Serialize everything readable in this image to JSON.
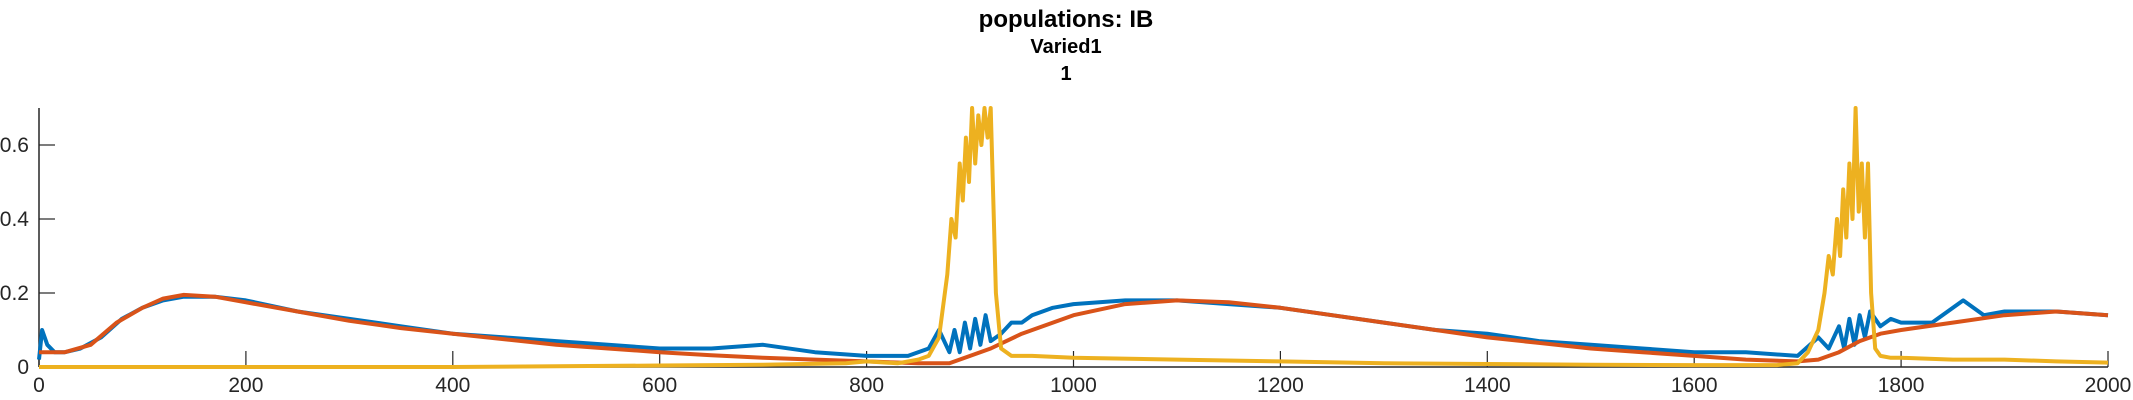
{
  "chart_data": {
    "type": "line",
    "title": "populations: IB",
    "subtitle": "Varied1",
    "subtitle2": "1",
    "xlabel": "",
    "ylabel": "",
    "xlim": [
      0,
      2000
    ],
    "ylim": [
      0,
      0.7
    ],
    "xticks": [
      0,
      200,
      400,
      600,
      800,
      1000,
      1200,
      1400,
      1600,
      1800,
      2000
    ],
    "yticks": [
      0,
      0.2,
      0.4,
      0.6
    ],
    "xtick_labels": [
      "0",
      "200",
      "400",
      "600",
      "800",
      "1000",
      "1200",
      "1400",
      "1600",
      "1800",
      "2000"
    ],
    "ytick_labels": [
      "0",
      "0.2",
      "0.4",
      "0.6"
    ],
    "grid": false,
    "legend": "none",
    "series": [
      {
        "color": "#0072BD",
        "x": [
          0,
          3,
          8,
          15,
          25,
          40,
          60,
          80,
          100,
          120,
          140,
          170,
          200,
          250,
          300,
          350,
          400,
          450,
          500,
          550,
          600,
          650,
          700,
          750,
          800,
          840,
          860,
          870,
          880,
          885,
          890,
          895,
          900,
          905,
          910,
          915,
          920,
          930,
          940,
          950,
          960,
          970,
          980,
          1000,
          1050,
          1100,
          1150,
          1200,
          1250,
          1300,
          1350,
          1400,
          1450,
          1500,
          1550,
          1600,
          1650,
          1700,
          1720,
          1730,
          1740,
          1745,
          1750,
          1755,
          1760,
          1765,
          1770,
          1780,
          1790,
          1800,
          1830,
          1860,
          1880,
          1900,
          1950,
          2000
        ],
        "y": [
          0.02,
          0.1,
          0.06,
          0.04,
          0.04,
          0.05,
          0.08,
          0.13,
          0.16,
          0.18,
          0.19,
          0.19,
          0.18,
          0.15,
          0.13,
          0.11,
          0.09,
          0.08,
          0.07,
          0.06,
          0.05,
          0.05,
          0.06,
          0.04,
          0.03,
          0.03,
          0.05,
          0.1,
          0.04,
          0.1,
          0.04,
          0.12,
          0.05,
          0.13,
          0.06,
          0.14,
          0.07,
          0.09,
          0.12,
          0.12,
          0.14,
          0.15,
          0.16,
          0.17,
          0.18,
          0.18,
          0.17,
          0.16,
          0.14,
          0.12,
          0.1,
          0.09,
          0.07,
          0.06,
          0.05,
          0.04,
          0.04,
          0.03,
          0.08,
          0.05,
          0.11,
          0.05,
          0.13,
          0.06,
          0.14,
          0.08,
          0.15,
          0.11,
          0.13,
          0.12,
          0.12,
          0.18,
          0.14,
          0.15,
          0.15,
          0.14
        ]
      },
      {
        "color": "#D95319",
        "x": [
          0,
          10,
          25,
          50,
          75,
          100,
          120,
          140,
          170,
          200,
          250,
          300,
          350,
          400,
          450,
          500,
          550,
          600,
          650,
          700,
          750,
          800,
          850,
          880,
          900,
          920,
          950,
          1000,
          1050,
          1100,
          1150,
          1200,
          1250,
          1300,
          1350,
          1400,
          1450,
          1500,
          1550,
          1600,
          1650,
          1700,
          1720,
          1740,
          1760,
          1780,
          1800,
          1850,
          1900,
          1950,
          2000
        ],
        "y": [
          0.04,
          0.04,
          0.04,
          0.06,
          0.12,
          0.16,
          0.185,
          0.195,
          0.19,
          0.175,
          0.15,
          0.125,
          0.105,
          0.09,
          0.075,
          0.06,
          0.05,
          0.04,
          0.032,
          0.025,
          0.02,
          0.015,
          0.01,
          0.01,
          0.03,
          0.05,
          0.09,
          0.14,
          0.17,
          0.18,
          0.175,
          0.16,
          0.14,
          0.12,
          0.1,
          0.08,
          0.065,
          0.05,
          0.04,
          0.03,
          0.02,
          0.015,
          0.02,
          0.04,
          0.07,
          0.09,
          0.1,
          0.12,
          0.14,
          0.15,
          0.14
        ]
      },
      {
        "color": "#EDB120",
        "x": [
          0,
          100,
          200,
          300,
          400,
          500,
          600,
          700,
          780,
          800,
          830,
          850,
          860,
          870,
          878,
          882,
          886,
          890,
          893,
          896,
          899,
          902,
          905,
          908,
          911,
          914,
          917,
          920,
          922,
          925,
          930,
          940,
          960,
          1000,
          1100,
          1200,
          1300,
          1400,
          1500,
          1600,
          1680,
          1700,
          1710,
          1720,
          1726,
          1730,
          1734,
          1738,
          1741,
          1744,
          1747,
          1750,
          1753,
          1756,
          1759,
          1762,
          1765,
          1768,
          1771,
          1775,
          1780,
          1790,
          1800,
          1850,
          1900,
          1950,
          2000
        ],
        "y": [
          0,
          0,
          0,
          0,
          0,
          0.002,
          0.004,
          0.006,
          0.01,
          0.015,
          0.01,
          0.02,
          0.03,
          0.08,
          0.25,
          0.4,
          0.35,
          0.55,
          0.45,
          0.62,
          0.5,
          0.7,
          0.55,
          0.68,
          0.6,
          0.7,
          0.62,
          0.7,
          0.5,
          0.2,
          0.05,
          0.03,
          0.03,
          0.025,
          0.02,
          0.015,
          0.01,
          0.008,
          0.006,
          0.005,
          0.005,
          0.01,
          0.04,
          0.1,
          0.2,
          0.3,
          0.25,
          0.4,
          0.3,
          0.48,
          0.35,
          0.55,
          0.4,
          0.7,
          0.42,
          0.55,
          0.35,
          0.55,
          0.2,
          0.05,
          0.03,
          0.025,
          0.025,
          0.02,
          0.02,
          0.015,
          0.012
        ]
      }
    ]
  }
}
